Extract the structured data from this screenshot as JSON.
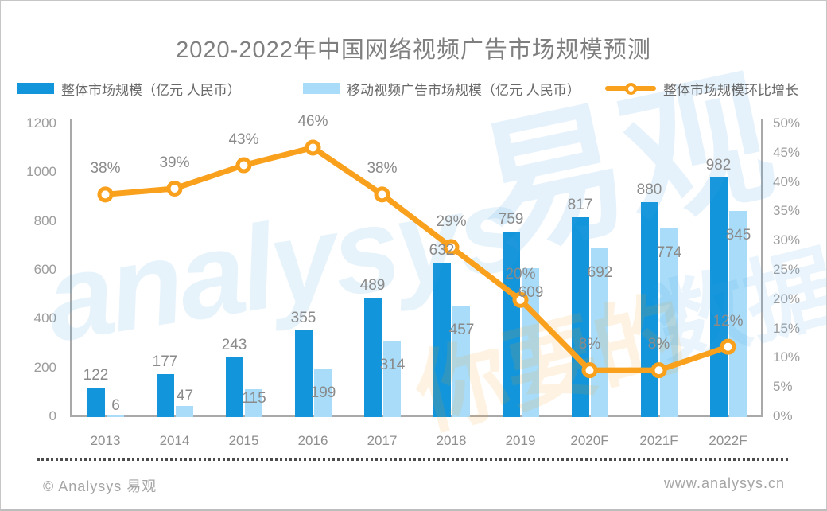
{
  "title": "2020-2022年中国网络视频广告市场规模预测",
  "legend": [
    {
      "label": "整体市场规模（亿元 人民币）",
      "swatch": "bar",
      "color": "#1295db"
    },
    {
      "label": "移动视频广告市场规模（亿元 人民币）",
      "swatch": "bar",
      "color": "#a8dcf8"
    },
    {
      "label": "整体市场规模环比增长",
      "swatch": "line",
      "color": "#f9a01c"
    }
  ],
  "chart_data": {
    "type": "bar",
    "title": "2020-2022年中国网络视频广告市场规模预测",
    "categories": [
      "2013",
      "2014",
      "2015",
      "2016",
      "2017",
      "2018",
      "2019",
      "2020F",
      "2021F",
      "2022F"
    ],
    "series": [
      {
        "name": "整体市场规模（亿元 人民币）",
        "type": "bar",
        "color": "#1295db",
        "values": [
          122,
          177,
          243,
          355,
          489,
          632,
          759,
          817,
          880,
          982
        ]
      },
      {
        "name": "移动视频广告市场规模（亿元 人民币）",
        "type": "bar",
        "color": "#a8dcf8",
        "values": [
          6,
          47,
          115,
          199,
          314,
          457,
          609,
          692,
          774,
          845
        ]
      },
      {
        "name": "整体市场规模环比增长",
        "type": "line",
        "color": "#f9a01c",
        "axis": "right",
        "values": [
          38,
          39,
          43,
          46,
          38,
          29,
          20,
          8,
          8,
          12
        ],
        "labels": [
          "38%",
          "39%",
          "43%",
          "46%",
          "38%",
          "29%",
          "20%",
          "8%",
          "8%",
          "12%"
        ]
      }
    ],
    "left_axis": {
      "max": 1200,
      "min": 0,
      "ticks": [
        "1200",
        "1000",
        "800",
        "600",
        "400",
        "200",
        "0"
      ]
    },
    "right_axis": {
      "max": 50,
      "min": 0,
      "ticks": [
        "50%",
        "45%",
        "40%",
        "35%",
        "30%",
        "25%",
        "20%",
        "15%",
        "10%",
        "5%",
        "0%"
      ]
    },
    "grid": false,
    "legend_position": "top",
    "value_label_color": "#8a8a8a"
  },
  "watermark": {
    "brand": "analysys",
    "brand_cjk": "易观",
    "slogan_left": "你要的",
    "slogan_right": "数据能力"
  },
  "footer": {
    "copyright": "© Analysys 易观",
    "website": "www.analysys.cn"
  },
  "colors": {
    "bar_primary": "#1295db",
    "bar_secondary": "#a8dcf8",
    "line": "#f9a01c",
    "axis": "#a9a9a9",
    "tick_text": "#9c9c9c",
    "title_text": "#7f7f7f",
    "label_text": "#8a8a8a",
    "border": "#c6c6c6"
  }
}
